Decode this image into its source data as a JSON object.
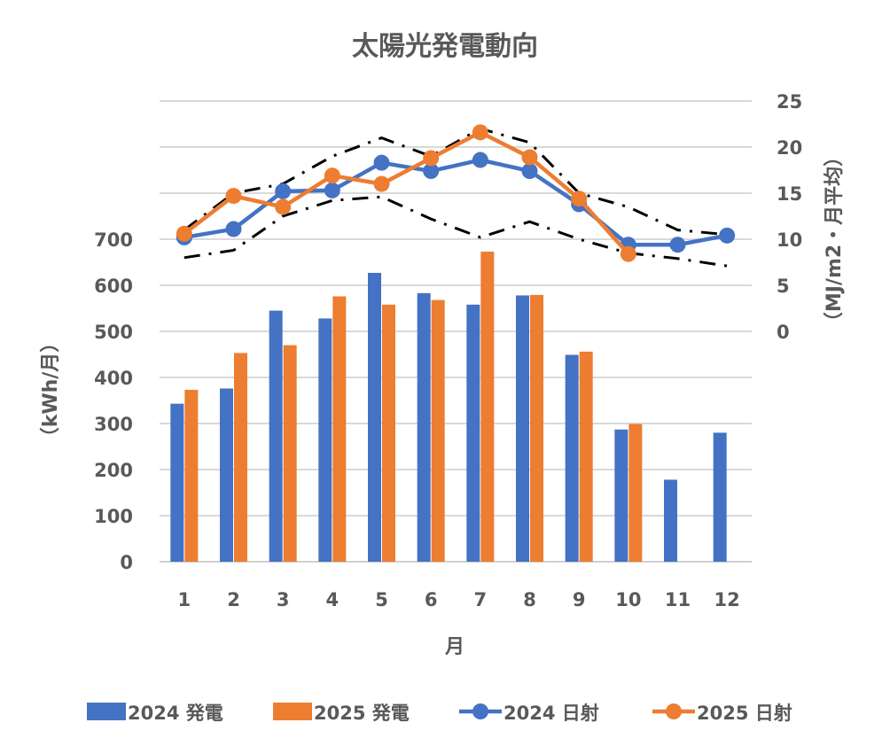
{
  "chart_data": {
    "type": "bar+line",
    "title": "太陽光発電動向",
    "xlabel": "月",
    "ylabel": "（kWh/月）",
    "y2label": "（MJ/m2・月平均）",
    "categories": [
      "1",
      "2",
      "3",
      "4",
      "5",
      "6",
      "7",
      "8",
      "9",
      "10",
      "11",
      "12"
    ],
    "ylim": [
      0,
      1000
    ],
    "yticks": [
      0,
      100,
      200,
      300,
      400,
      500,
      600,
      700
    ],
    "y2lim": [
      0,
      25
    ],
    "y2ticks": [
      0,
      5,
      10,
      15,
      20,
      25
    ],
    "grid": true,
    "legend_position": "bottom",
    "bar_series": [
      {
        "name": "2024 発電",
        "color": "#4472C4",
        "values": [
          343,
          376,
          545,
          528,
          627,
          583,
          558,
          578,
          449,
          287,
          178,
          280
        ]
      },
      {
        "name": "2025 発電",
        "color": "#ED7D31",
        "values": [
          373,
          453,
          470,
          576,
          558,
          568,
          673,
          579,
          456,
          299,
          null,
          null
        ]
      }
    ],
    "line_series": [
      {
        "name": "2024 日射",
        "color": "#4472C4",
        "values": [
          10.2,
          11.1,
          15.2,
          15.3,
          18.3,
          17.4,
          18.6,
          17.4,
          13.8,
          9.4,
          9.4,
          10.4
        ]
      },
      {
        "name": "2025 日射",
        "color": "#ED7D31",
        "values": [
          10.6,
          14.7,
          13.5,
          16.9,
          16.0,
          18.8,
          21.6,
          18.9,
          14.4,
          8.4,
          null,
          null
        ]
      }
    ],
    "reference_lines": [
      {
        "style": "dash-dot",
        "color": "#000000",
        "values": [
          11,
          15,
          16,
          19,
          21,
          19,
          22,
          20.5,
          15,
          13.5,
          11,
          10.5
        ]
      },
      {
        "style": "dash-dot",
        "color": "#000000",
        "values": [
          8,
          8.8,
          12.5,
          14.2,
          14.6,
          12.2,
          10.2,
          11.9,
          10,
          8.5,
          7.9,
          7.1
        ]
      }
    ]
  }
}
